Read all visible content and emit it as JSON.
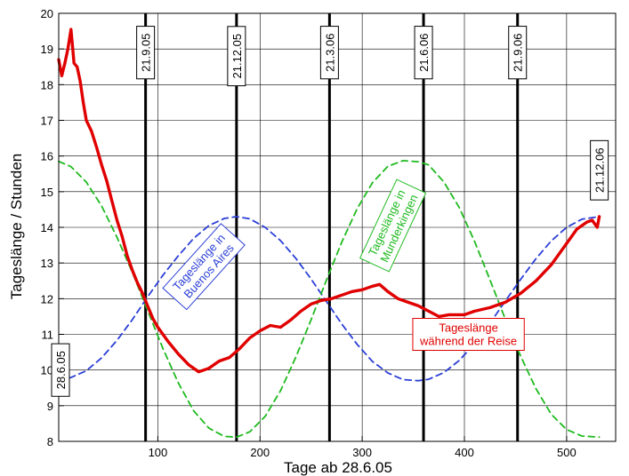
{
  "chart_data": {
    "type": "line",
    "xlabel": "Tage ab 28.6.05",
    "ylabel": "Tageslänge / Stunden",
    "xlim": [
      3,
      548
    ],
    "ylim": [
      8,
      20
    ],
    "x_ticks": [
      100,
      200,
      300,
      400,
      500
    ],
    "y_ticks": [
      8,
      9,
      10,
      11,
      12,
      13,
      14,
      15,
      16,
      17,
      18,
      19,
      20
    ],
    "grid": true,
    "series": [
      {
        "key": "reise",
        "color": "#e00000",
        "dash": "solid",
        "x": [
          3,
          6,
          9,
          12,
          15,
          18,
          21,
          24,
          27,
          30,
          35,
          40,
          45,
          50,
          55,
          60,
          65,
          70,
          75,
          80,
          85,
          90,
          95,
          100,
          110,
          120,
          130,
          140,
          150,
          160,
          170,
          180,
          190,
          200,
          210,
          220,
          230,
          240,
          250,
          260,
          270,
          280,
          290,
          300,
          310,
          317,
          325,
          335,
          345,
          355,
          365,
          375,
          385,
          400,
          410,
          425,
          440,
          455,
          470,
          485,
          500,
          510,
          520,
          525,
          530,
          532
        ],
        "y": [
          18.7,
          18.25,
          18.6,
          19.0,
          19.55,
          18.6,
          18.5,
          18.1,
          17.5,
          17.0,
          16.7,
          16.25,
          15.75,
          15.3,
          14.75,
          14.2,
          13.75,
          13.2,
          12.8,
          12.45,
          12.15,
          11.8,
          11.45,
          11.2,
          10.8,
          10.45,
          10.15,
          9.95,
          10.05,
          10.25,
          10.35,
          10.6,
          10.9,
          11.1,
          11.25,
          11.2,
          11.4,
          11.65,
          11.85,
          11.95,
          12.0,
          12.1,
          12.2,
          12.25,
          12.35,
          12.4,
          12.2,
          12.0,
          11.9,
          11.8,
          11.65,
          11.5,
          11.55,
          11.55,
          11.65,
          11.75,
          11.9,
          12.15,
          12.5,
          12.95,
          13.55,
          13.95,
          14.15,
          14.2,
          14.0,
          14.3
        ]
      },
      {
        "key": "buenos",
        "color": "#2b3fd6",
        "dash": "dashed",
        "x": [
          3,
          15,
          30,
          45,
          60,
          75,
          90,
          105,
          120,
          135,
          150,
          165,
          177,
          190,
          205,
          220,
          235,
          250,
          265,
          280,
          295,
          310,
          325,
          340,
          355,
          365,
          380,
          395,
          410,
          425,
          440,
          455,
          470,
          485,
          500,
          515,
          532
        ],
        "y": [
          9.72,
          9.79,
          9.98,
          10.34,
          10.83,
          11.41,
          12.05,
          12.66,
          13.2,
          13.69,
          14.05,
          14.25,
          14.3,
          14.24,
          14.0,
          13.63,
          13.13,
          12.55,
          11.92,
          11.29,
          10.72,
          10.24,
          9.92,
          9.73,
          9.7,
          9.74,
          9.93,
          10.27,
          10.74,
          11.31,
          11.93,
          12.54,
          13.12,
          13.62,
          14.0,
          14.23,
          14.3
        ]
      },
      {
        "key": "munder",
        "color": "#1fba1f",
        "dash": "dashed",
        "x": [
          3,
          15,
          30,
          45,
          60,
          75,
          90,
          105,
          120,
          135,
          150,
          165,
          177,
          190,
          205,
          220,
          235,
          250,
          265,
          280,
          295,
          310,
          325,
          340,
          355,
          365,
          380,
          395,
          410,
          425,
          440,
          455,
          470,
          485,
          500,
          515,
          532
        ],
        "y": [
          15.85,
          15.7,
          15.27,
          14.6,
          13.72,
          12.74,
          11.67,
          10.6,
          9.64,
          8.86,
          8.37,
          8.14,
          8.12,
          8.27,
          8.7,
          9.42,
          10.36,
          11.41,
          12.52,
          13.59,
          14.52,
          15.25,
          15.71,
          15.87,
          15.84,
          15.75,
          15.27,
          14.55,
          13.6,
          12.53,
          11.43,
          10.39,
          9.48,
          8.76,
          8.33,
          8.15,
          8.12
        ]
      }
    ],
    "date_markers": [
      {
        "x": 3,
        "label": "28.6.05",
        "label_y": 10.0
      },
      {
        "x": 88,
        "label": "21.9.05",
        "label_y": 18.9
      },
      {
        "x": 177,
        "label": "21.12.05",
        "label_y": 18.8
      },
      {
        "x": 268,
        "label": "21.3.06",
        "label_y": 18.9
      },
      {
        "x": 360,
        "label": "21.6.06",
        "label_y": 18.9
      },
      {
        "x": 452,
        "label": "21.9.06",
        "label_y": 18.9
      },
      {
        "x": 532,
        "label": "21.12.06",
        "label_y": 15.6
      }
    ],
    "annotations": [
      {
        "key": "buenos",
        "lines": [
          "Tageslänge in",
          "Buenos Aires"
        ],
        "color": "#2b3fd6",
        "x": 145,
        "y": 12.9,
        "rotate": -48
      },
      {
        "key": "munder",
        "lines": [
          "Tageslänge in",
          "Munderkingen"
        ],
        "color": "#1fba1f",
        "x": 330,
        "y": 14.05,
        "rotate": -65
      },
      {
        "key": "reise",
        "lines": [
          "Tageslänge",
          "während der Reise"
        ],
        "color": "#e00000",
        "x": 404,
        "y": 11.0,
        "rotate": 0
      }
    ]
  }
}
